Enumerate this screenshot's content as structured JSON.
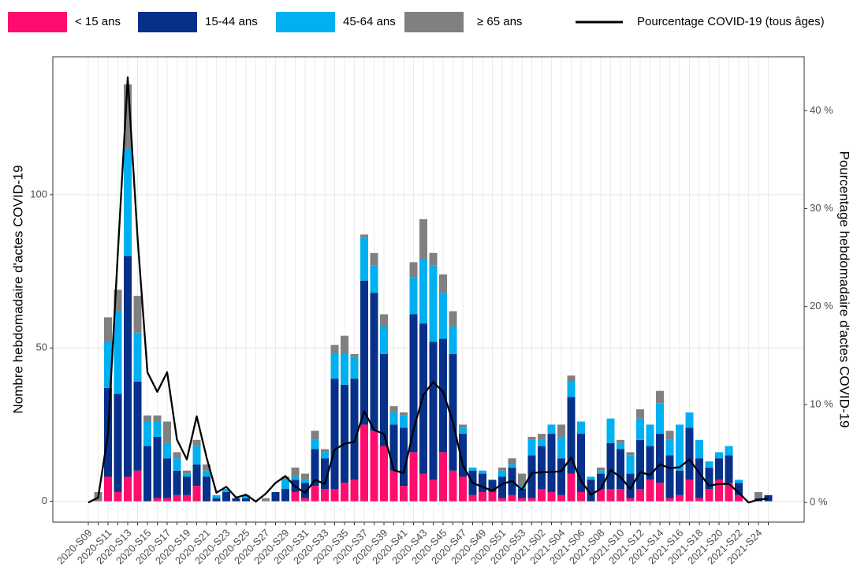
{
  "chart_data": {
    "type": "bar",
    "stacked": true,
    "categories": [
      "2020-S09",
      null,
      "2020-S11",
      null,
      "2020-S13",
      null,
      "2020-S15",
      null,
      "2020-S17",
      null,
      "2020-S19",
      null,
      "2020-S21",
      null,
      "2020-S23",
      null,
      "2020-S25",
      null,
      "2020-S27",
      null,
      "2020-S29",
      null,
      "2020-S31",
      null,
      "2020-S33",
      null,
      "2020-S35",
      null,
      "2020-S37",
      null,
      "2020-S39",
      null,
      "2020-S41",
      null,
      "2020-S43",
      null,
      "2020-S45",
      null,
      "2020-S47",
      null,
      "2020-S49",
      null,
      "2020-S51",
      null,
      "2020-S53",
      null,
      "2021-S02",
      null,
      "2021-S04",
      null,
      "2021-S06",
      null,
      "2021-S08",
      null,
      "2021-S10",
      null,
      "2021-S12",
      null,
      "2021-S14",
      null,
      "2021-S16",
      null,
      "2021-S18",
      null,
      "2021-S20",
      null,
      "2021-S22",
      null,
      "2021-S24",
      null
    ],
    "series": [
      {
        "name": "< 15 ans",
        "color": "#ff0d6e",
        "values": [
          0,
          0,
          8,
          3,
          8,
          10,
          0,
          1,
          1,
          2,
          2,
          5,
          0,
          0,
          0,
          0,
          0,
          0,
          0,
          0,
          0,
          3,
          1,
          5,
          4,
          4,
          6,
          7,
          25,
          23,
          18,
          10,
          5,
          16,
          9,
          7,
          16,
          10,
          8,
          2,
          3,
          3,
          1,
          2,
          1,
          1,
          4,
          3,
          2,
          9,
          3,
          0,
          4,
          4,
          4,
          1,
          4,
          7,
          6,
          1,
          2,
          7,
          1,
          4,
          7,
          6,
          2,
          0,
          0,
          0
        ]
      },
      {
        "name": "15-44 ans",
        "color": "#06308a",
        "values": [
          0,
          0,
          29,
          32,
          72,
          29,
          18,
          20,
          13,
          8,
          6,
          7,
          8,
          1,
          3,
          1,
          1,
          0,
          0,
          3,
          4,
          4,
          5,
          12,
          10,
          36,
          32,
          33,
          47,
          45,
          30,
          15,
          19,
          45,
          49,
          45,
          37,
          38,
          14,
          8,
          6,
          4,
          7,
          9,
          3,
          14,
          14,
          19,
          12,
          25,
          19,
          7,
          5,
          15,
          13,
          8,
          16,
          11,
          16,
          14,
          8,
          17,
          13,
          7,
          7,
          9,
          4,
          0,
          1,
          2
        ]
      },
      {
        "name": "45-64 ans",
        "color": "#00b0f0",
        "values": [
          0,
          0,
          15,
          27,
          35,
          16,
          8,
          5,
          5,
          4,
          1,
          6,
          2,
          1,
          1,
          0,
          1,
          0,
          0,
          0,
          3,
          1,
          1,
          3,
          2,
          8,
          10,
          7,
          14,
          9,
          9,
          4,
          4,
          12,
          21,
          25,
          15,
          9,
          2,
          1,
          1,
          0,
          2,
          1,
          1,
          5,
          2,
          3,
          7,
          5,
          4,
          1,
          1,
          8,
          2,
          6,
          7,
          7,
          10,
          5,
          15,
          5,
          6,
          2,
          2,
          3,
          1,
          0,
          0,
          0
        ]
      },
      {
        "name": "≥ 65 ans",
        "color": "#808080",
        "values": [
          0,
          3,
          8,
          7,
          21,
          12,
          2,
          2,
          7,
          2,
          1,
          2,
          2,
          0,
          0,
          0,
          0,
          0,
          1,
          0,
          1,
          3,
          2,
          3,
          1,
          3,
          6,
          1,
          1,
          4,
          4,
          2,
          1,
          5,
          13,
          4,
          6,
          5,
          1,
          0,
          0,
          0,
          1,
          2,
          4,
          1,
          2,
          0,
          4,
          2,
          0,
          0,
          1,
          0,
          1,
          1,
          3,
          0,
          4,
          3,
          0,
          0,
          0,
          0,
          0,
          0,
          0,
          0,
          2,
          0
        ]
      },
      {
        "name": "Pourcentage COVID-19 (tous âges)",
        "type": "line",
        "axis": "y2",
        "color": "#000000",
        "values": [
          0,
          0.5,
          7,
          25.5,
          43.4,
          27,
          13.3,
          11.3,
          13.3,
          6.4,
          4.4,
          8.8,
          4.6,
          1,
          1.6,
          0.5,
          0.8,
          0.1,
          0.9,
          2,
          2.7,
          1.6,
          1,
          2.3,
          1.9,
          5.4,
          6,
          6.2,
          9.3,
          7.4,
          7,
          3.3,
          3,
          7.4,
          11,
          12.3,
          11.3,
          8.2,
          3.8,
          2,
          1.6,
          1.2,
          1.9,
          2.2,
          1.3,
          3,
          3.1,
          3.1,
          3.2,
          4.6,
          2.2,
          0.8,
          1.4,
          3.3,
          2.6,
          1.4,
          3.1,
          2.8,
          3.9,
          3.5,
          3.6,
          4.4,
          3,
          1.7,
          1.9,
          1.9,
          1,
          0,
          0.3,
          0.4
        ]
      }
    ],
    "y_label": "Nombre hebdomadaire d'actes COVID-19",
    "y2_label": "Pourcentage hebdomadaire d'actes COVID-19",
    "ylim": [
      -6.8,
      145
    ],
    "yticks": [
      0,
      50,
      100
    ],
    "y2lim": [
      -2,
      45.5
    ],
    "y2ticks": [
      {
        "value": 0,
        "label": "0 %"
      },
      {
        "value": 10,
        "label": "10 %"
      },
      {
        "value": 20,
        "label": "20 %"
      },
      {
        "value": 30,
        "label": "30 %"
      },
      {
        "value": 40,
        "label": "40 %"
      }
    ],
    "grid": true,
    "legend": "top"
  }
}
